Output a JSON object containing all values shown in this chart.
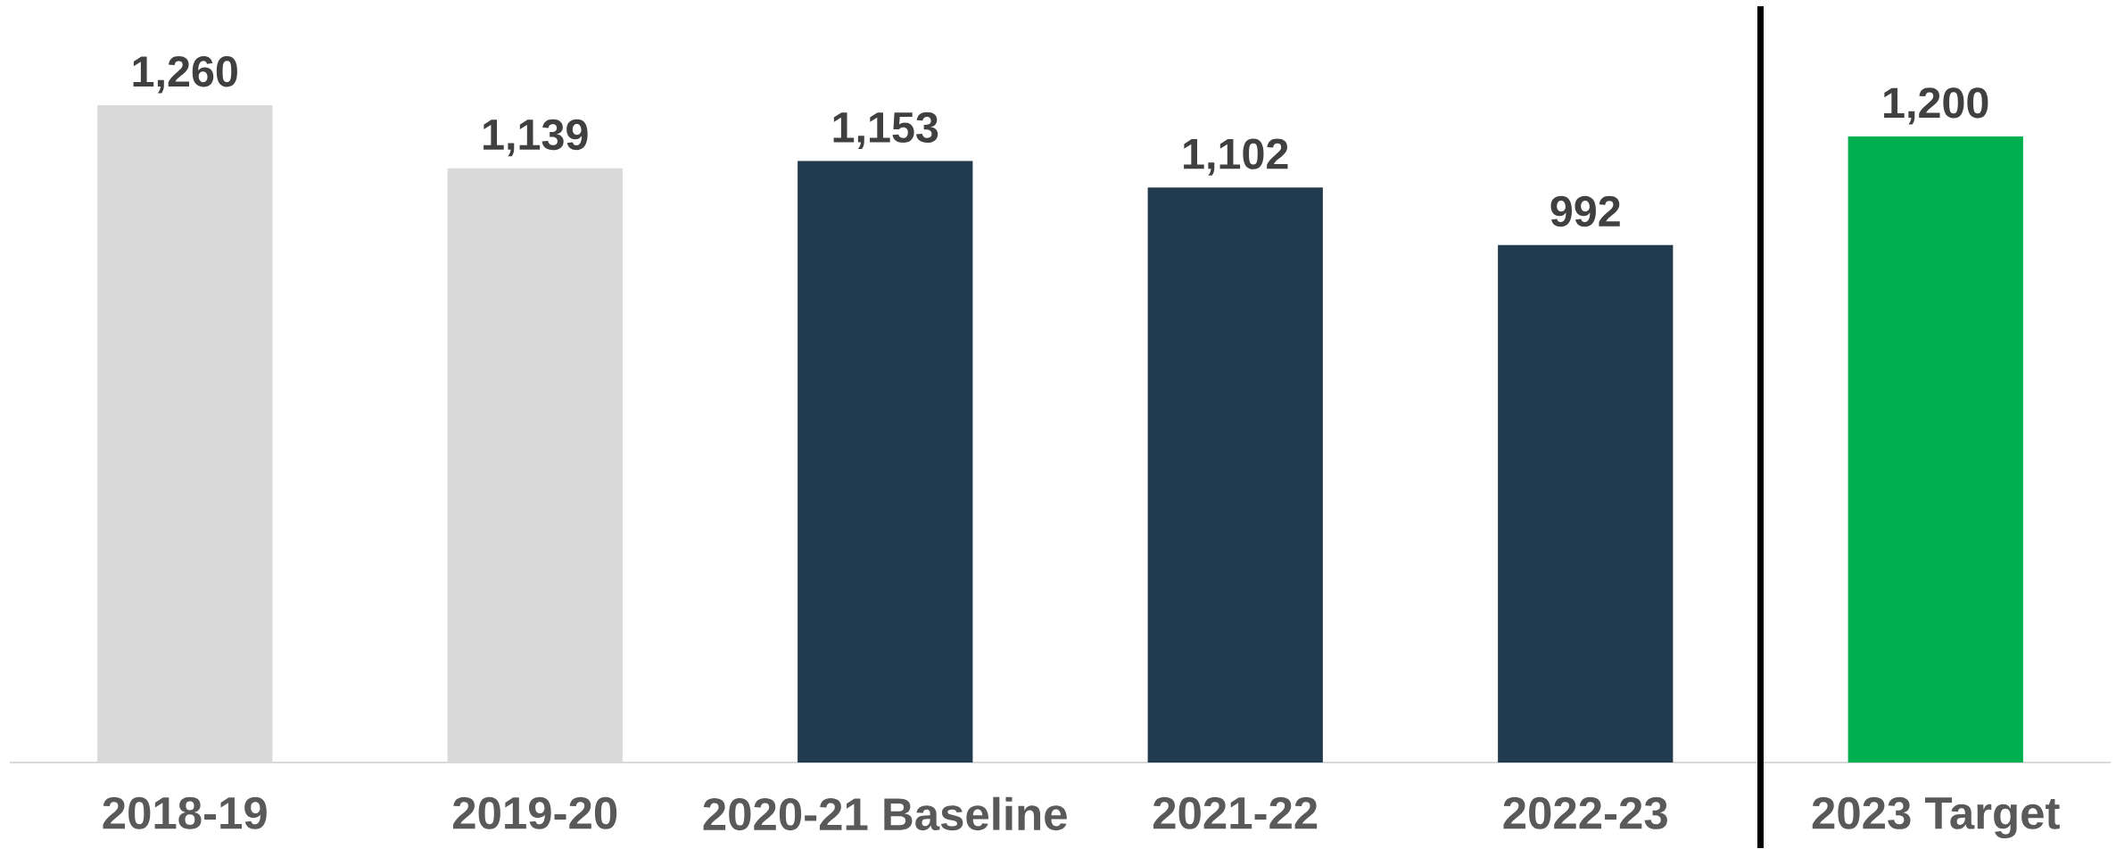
{
  "chart_data": {
    "type": "bar",
    "categories": [
      "2018-19",
      "2019-20",
      "2020-21 Baseline",
      "2021-22",
      "2022-23",
      "2023 Target"
    ],
    "values": [
      1260,
      1139,
      1153,
      1102,
      992,
      1200
    ],
    "colors": [
      "#d9d9d9",
      "#d9d9d9",
      "#213a4e",
      "#213a4e",
      "#213a4e",
      "#00b050"
    ],
    "value_labels": [
      "1,260",
      "1,139",
      "1,153",
      "1,102",
      "992",
      "1,200"
    ]
  }
}
